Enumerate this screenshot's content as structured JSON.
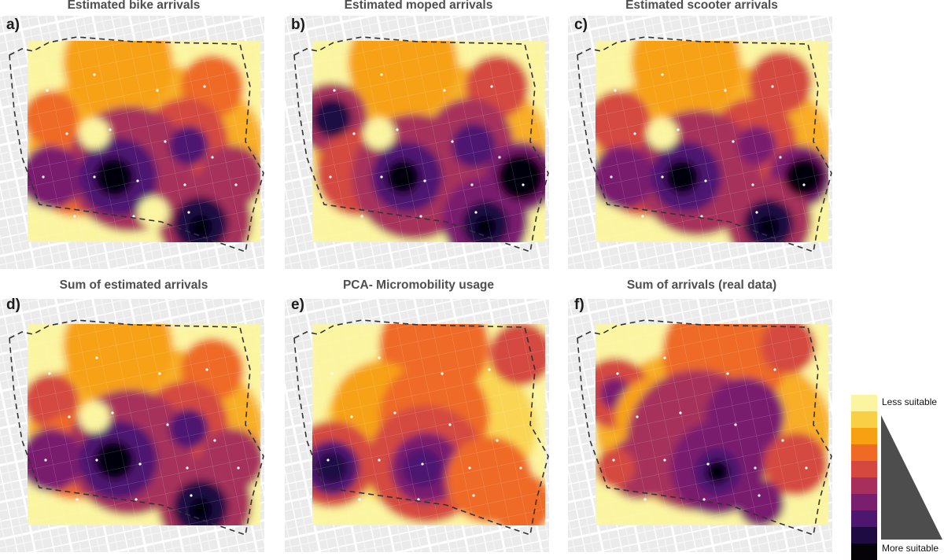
{
  "panels": [
    {
      "letter": "a)",
      "title": "Estimated bike arrivals"
    },
    {
      "letter": "b)",
      "title": "Estimated moped arrivals"
    },
    {
      "letter": "c)",
      "title": "Estimated scooter arrivals"
    },
    {
      "letter": "d)",
      "title": "Sum of estimated arrivals"
    },
    {
      "letter": "e)",
      "title": "PCA- Micromobility usage"
    },
    {
      "letter": "f)",
      "title": "Sum of arrivals (real data)"
    }
  ],
  "legend": {
    "low_label": "Less suitable",
    "high_label": "More suitable",
    "colors": [
      "#fbf5a1",
      "#f9cf45",
      "#f7a112",
      "#ee6a25",
      "#d44840",
      "#a6305b",
      "#7a1e6e",
      "#4d1770",
      "#1d0b42",
      "#050308"
    ],
    "wedge_color": "#4d4d4d"
  }
}
